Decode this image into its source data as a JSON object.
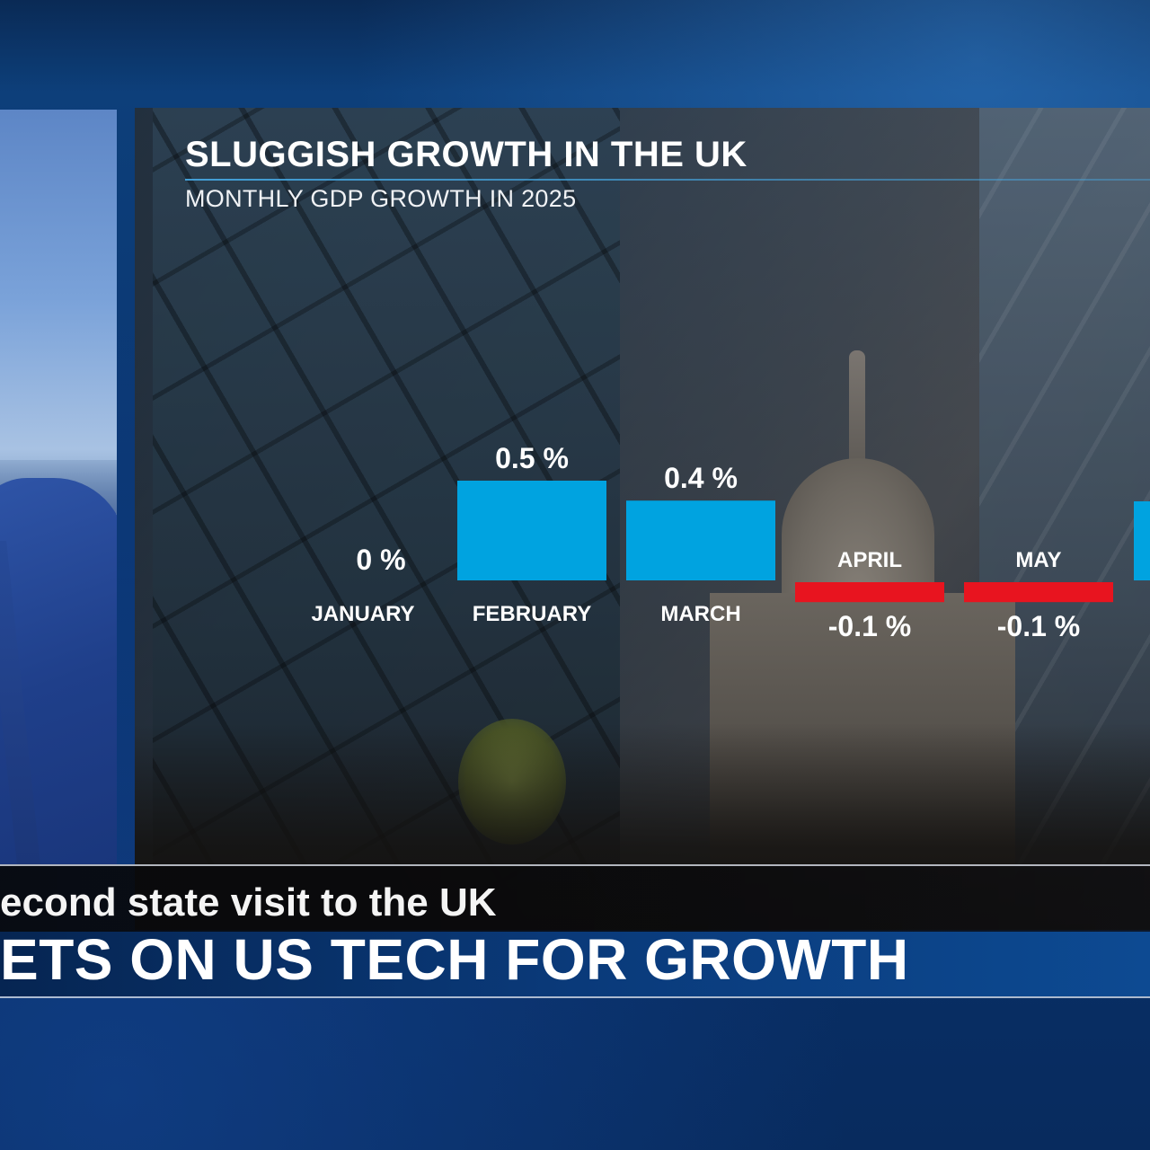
{
  "chart_data": {
    "type": "bar",
    "title": "SLUGGISH GROWTH IN THE UK",
    "subtitle": "MONTHLY GDP GROWTH IN 2025",
    "categories": [
      "JANUARY",
      "FEBRUARY",
      "MARCH",
      "APRIL",
      "MAY"
    ],
    "values": [
      0,
      0.5,
      0.4,
      -0.1,
      -0.1
    ],
    "value_labels": [
      "0 %",
      "0.5 %",
      "0.4 %",
      "-0.1 %",
      "-0.1 %"
    ],
    "xlabel": "",
    "ylabel": "",
    "grid": false,
    "legend": "none",
    "colors": {
      "positive": "#00a3e0",
      "negative": "#e8141f"
    }
  },
  "ticker": {
    "subheadline": "econd state visit to the UK",
    "headline": "ETS ON US TECH FOR GROWTH"
  }
}
